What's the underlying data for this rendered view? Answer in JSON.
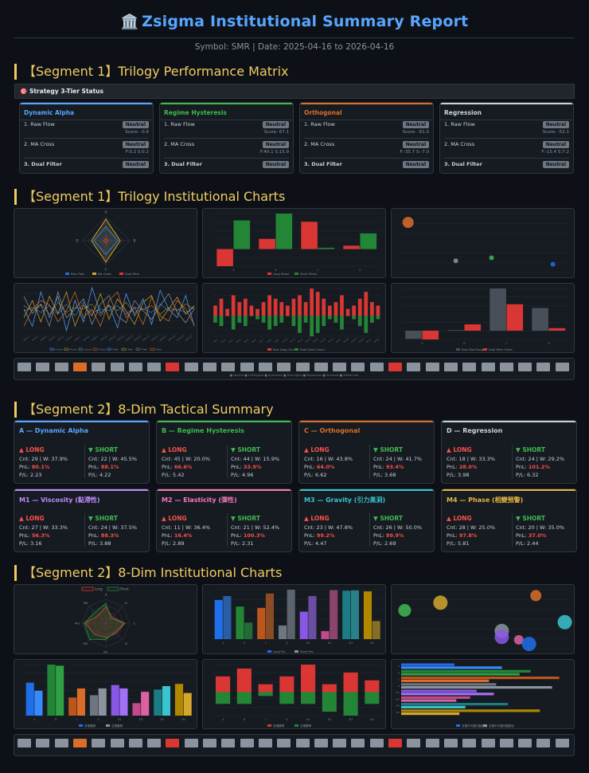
{
  "header": {
    "icon_name": "bank-icon",
    "icon_glyph": "🏛️",
    "title": "Zsigma Institutional Summary Report",
    "subtitle": "Symbol: SMR | Date: 2025-04-16 to 2026-04-16"
  },
  "seg1_matrix": {
    "title": "【Segment 1】Trilogy Performance Matrix",
    "status_bar": "🎯 Strategy 3-Tier Status",
    "cards": [
      {
        "name": "Dynamic Alpha",
        "color": "#58a6ff",
        "raw_flow": "1. Raw Flow",
        "raw_badge": "Neutral",
        "raw_sub": "Score: -0.6",
        "ma_cross": "2. MA Cross",
        "ma_badge": "Neutral",
        "ma_sub": "F:0.2 S:0.2",
        "dual": "3. Dual Filter",
        "dual_badge": "Neutral"
      },
      {
        "name": "Regime Hysteresis",
        "color": "#3fb950",
        "raw_flow": "1. Raw Flow",
        "raw_badge": "Neutral",
        "raw_sub": "Score: 67.1",
        "ma_cross": "2. MA Cross",
        "ma_badge": "Neutral",
        "ma_sub": "F:40.1 S:15.9",
        "dual": "3. Dual Filter",
        "dual_badge": "Neutral"
      },
      {
        "name": "Orthogonal",
        "color": "#db6d28",
        "raw_flow": "1. Raw Flow",
        "raw_badge": "Neutral",
        "raw_sub": "Score: -81.0",
        "ma_cross": "2. MA Cross",
        "ma_badge": "Neutral",
        "ma_sub": "F:-35.7 S:-7.0",
        "dual": "3. Dual Filter",
        "dual_badge": "Neutral"
      },
      {
        "name": "Regression",
        "color": "#c9d1d9",
        "raw_flow": "1. Raw Flow",
        "raw_badge": "Neutral",
        "raw_sub": "Score: -52.1",
        "ma_cross": "2. MA Cross",
        "ma_badge": "Neutral",
        "ma_sub": "F:-15.4 S:7.2",
        "dual": "3. Dual Filter",
        "dual_badge": "Neutral"
      }
    ]
  },
  "seg1_charts": {
    "title": "【Segment 1】Trilogy Institutional Charts",
    "radar_axes": [
      "A",
      "B",
      "C",
      "D"
    ],
    "radar_legend": [
      "Raw Flow",
      "MA Cross",
      "Dual Filter"
    ],
    "bar1_legend": [
      "Long Share",
      "Short Share"
    ],
    "bar2_legend": [
      "Raw Long Count",
      "Dual Short Count"
    ],
    "bar3_legend": [
      "Raw Flow Range",
      "Dual Filter Share"
    ],
    "line_legend": [
      "A Score",
      "B Score",
      "C Score",
      "D Score",
      "A Fast",
      "B Fast",
      "C Fast",
      "D Fast"
    ],
    "strip_legend": "■ Neutral  ■ Orthogonal  ■ Hysteresis  ■ Dual Alpha  ■ Regression  ■ Overload  ■ Whole-mkt"
  },
  "chart_data": [
    {
      "type": "radar",
      "title": "Trilogy Radar",
      "axes": [
        "A",
        "B",
        "C",
        "D"
      ],
      "series": [
        {
          "name": "Raw Flow",
          "values": [
            0.6,
            0.5,
            0.6,
            0.5
          ]
        },
        {
          "name": "MA Cross",
          "values": [
            0.9,
            0.6,
            0.9,
            0.6
          ]
        },
        {
          "name": "Dual Filter",
          "values": [
            0.1,
            0.1,
            0.1,
            0.1
          ]
        }
      ]
    },
    {
      "type": "bar",
      "title": "Long vs Short Share",
      "categories": [
        "A",
        "B",
        "C",
        "D"
      ],
      "series": [
        {
          "name": "Long Share",
          "values": [
            -2.5,
            1.5,
            4.0,
            0.5
          ]
        },
        {
          "name": "Short Share",
          "values": [
            4.2,
            5.2,
            0.2,
            2.3
          ]
        }
      ]
    },
    {
      "type": "scatter",
      "title": "Raw vs MA",
      "points": [
        {
          "x": 0.05,
          "y": 0.85,
          "r": 7,
          "color": "#db6d28"
        },
        {
          "x": 0.33,
          "y": 0.2,
          "r": 3,
          "color": "#8b949e"
        },
        {
          "x": 0.54,
          "y": 0.25,
          "r": 3,
          "color": "#3fb950"
        },
        {
          "x": 0.9,
          "y": 0.14,
          "r": 3,
          "color": "#1f6feb"
        }
      ]
    },
    {
      "type": "line",
      "title": "Score Timeline",
      "series": [
        {
          "name": "A Score"
        },
        {
          "name": "B Score"
        },
        {
          "name": "C Score"
        },
        {
          "name": "D Score"
        }
      ]
    },
    {
      "type": "bar",
      "title": "Raw Long vs Dual Short Count",
      "categories": [
        "1",
        "2",
        "3",
        "4",
        "5",
        "6",
        "7",
        "8",
        "9",
        "10",
        "11",
        "12",
        "13",
        "14",
        "15",
        "16",
        "17",
        "18",
        "19",
        "20",
        "21",
        "22",
        "23",
        "24",
        "25",
        "26",
        "27",
        "28"
      ],
      "series": [
        {
          "name": "Raw Long Count",
          "values": [
            3,
            5,
            2,
            6,
            4,
            5,
            3,
            2,
            4,
            6,
            5,
            4,
            3,
            5,
            6,
            4,
            8,
            7,
            5,
            3,
            4,
            6,
            2,
            3,
            5,
            7,
            4,
            3
          ]
        },
        {
          "name": "Dual Short Count",
          "values": [
            -2,
            -3,
            0,
            -4,
            -2,
            -3,
            0,
            -1,
            -2,
            -4,
            -3,
            -2,
            0,
            -3,
            -5,
            -2,
            -6,
            -5,
            -3,
            -1,
            -2,
            -4,
            0,
            -1,
            -3,
            -5,
            -2,
            -1
          ]
        }
      ]
    },
    {
      "type": "bar",
      "title": "Raw Flow Range vs Dual Filter Share",
      "categories": [
        "A",
        "B",
        "C",
        "D"
      ],
      "series": [
        {
          "name": "Raw Flow Range",
          "values": [
            -1.3,
            0.1,
            6.7,
            3.6
          ]
        },
        {
          "name": "Dual Filter Share",
          "values": [
            -1.4,
            1.0,
            4.2,
            0.4
          ]
        }
      ]
    },
    {
      "type": "radar",
      "title": "8-Dim Radar",
      "axes": [
        "A",
        "B",
        "C",
        "D",
        "M1",
        "M2",
        "M3",
        "M4"
      ],
      "series": [
        {
          "name": "Long",
          "values": [
            37.9,
            20.0,
            43.8,
            33.3,
            33.3,
            36.4,
            47.8,
            25.0
          ]
        },
        {
          "name": "Short",
          "values": [
            45.5,
            15.9,
            41.7,
            29.2,
            37.5,
            52.4,
            50.0,
            35.0
          ]
        }
      ]
    },
    {
      "type": "bar",
      "title": "Long vs Short PnL",
      "categories": [
        "A",
        "B",
        "C",
        "D",
        "M1",
        "M2",
        "M3",
        "M4"
      ],
      "series": [
        {
          "name": "Long PnL",
          "values": [
            80.1,
            66.6,
            64.0,
            28.0,
            56.3,
            16.4,
            99.2,
            97.8
          ]
        },
        {
          "name": "Short PnL",
          "values": [
            88.1,
            33.9,
            93.4,
            101.2,
            88.3,
            100.3,
            99.9,
            37.0
          ]
        }
      ]
    },
    {
      "type": "scatter",
      "title": "Win Rate vs PnL",
      "points": [
        {
          "x": 0.03,
          "y": 0.65,
          "r": 8,
          "color": "#3fb950"
        },
        {
          "x": 0.24,
          "y": 0.78,
          "r": 9,
          "color": "#d4a72c"
        },
        {
          "x": 0.6,
          "y": 0.3,
          "r": 9,
          "color": "#8b949e"
        },
        {
          "x": 0.6,
          "y": 0.2,
          "r": 9,
          "color": "#8957e5"
        },
        {
          "x": 0.7,
          "y": 0.15,
          "r": 6,
          "color": "#db61a2"
        },
        {
          "x": 0.76,
          "y": 0.08,
          "r": 9,
          "color": "#1f6feb"
        },
        {
          "x": 0.8,
          "y": 0.9,
          "r": 7,
          "color": "#db6d28"
        },
        {
          "x": 0.97,
          "y": 0.45,
          "r": 9,
          "color": "#39c5cf"
        }
      ]
    },
    {
      "type": "bar",
      "title": "Long vs Short Count",
      "categories": [
        "A",
        "B",
        "C",
        "D",
        "M1",
        "M2",
        "M3",
        "M4"
      ],
      "series": [
        {
          "name": "Long Count",
          "values": [
            29,
            45,
            16,
            18,
            27,
            11,
            23,
            28
          ]
        },
        {
          "name": "Short Count",
          "values": [
            22,
            44,
            24,
            24,
            24,
            21,
            26,
            20
          ]
        }
      ]
    },
    {
      "type": "bar",
      "title": "Long vs Short Win Share",
      "categories": [
        "A",
        "B",
        "C",
        "D",
        "M1",
        "M2",
        "M3",
        "M4"
      ],
      "series": [
        {
          "name": "Long Win",
          "values": [
            4,
            6,
            2,
            4,
            7,
            2,
            5,
            3
          ]
        },
        {
          "name": "Short Win",
          "values": [
            -3,
            -3,
            -1,
            -3,
            -3,
            -5,
            -6,
            -3
          ]
        }
      ]
    },
    {
      "type": "bar",
      "title": "Long vs Short Profit Ratio",
      "orientation": "horizontal",
      "categories": [
        "A",
        "B",
        "C",
        "D",
        "M1",
        "M2",
        "M3",
        "M4"
      ],
      "series": [
        {
          "name": "Long P/L",
          "values": [
            2.23,
            5.42,
            6.62,
            3.98,
            3.16,
            2.89,
            4.47,
            5.81
          ]
        },
        {
          "name": "Short P/L",
          "values": [
            4.22,
            4.96,
            3.68,
            6.32,
            3.88,
            2.31,
            2.69,
            2.44
          ]
        }
      ]
    }
  ],
  "seg2_summary": {
    "title": "【Segment 2】8-Dim Tactical Summary",
    "long_label": "▲ LONG",
    "short_label": "▼ SHORT",
    "cards": [
      {
        "name": "A — Dynamic Alpha",
        "color": "#58a6ff",
        "long_cnt": "Cnt: 29 | W: 37.9%",
        "long_pnl_label": "PnL:",
        "long_pnl": "80.1%",
        "long_pl": "P/L: 2.23",
        "short_cnt": "Cnt: 22 | W: 45.5%",
        "short_pnl_label": "PnL:",
        "short_pnl": "88.1%",
        "short_pl": "P/L: 4.22"
      },
      {
        "name": "B — Regime Hysteresis",
        "color": "#3fb950",
        "long_cnt": "Cnt: 45 | W: 20.0%",
        "long_pnl_label": "PnL:",
        "long_pnl": "66.6%",
        "long_pl": "P/L: 5.42",
        "short_cnt": "Cnt: 44 | W: 15.9%",
        "short_pnl_label": "PnL:",
        "short_pnl": "33.9%",
        "short_pl": "P/L: 4.96"
      },
      {
        "name": "C — Orthogonal",
        "color": "#db6d28",
        "long_cnt": "Cnt: 16 | W: 43.8%",
        "long_pnl_label": "PnL:",
        "long_pnl": "64.0%",
        "long_pl": "P/L: 6.62",
        "short_cnt": "Cnt: 24 | W: 41.7%",
        "short_pnl_label": "PnL:",
        "short_pnl": "93.4%",
        "short_pl": "P/L: 3.68"
      },
      {
        "name": "D — Regression",
        "color": "#c9d1d9",
        "long_cnt": "Cnt: 18 | W: 33.3%",
        "long_pnl_label": "PnL:",
        "long_pnl": "28.0%",
        "long_pl": "P/L: 3.98",
        "short_cnt": "Cnt: 24 | W: 29.2%",
        "short_pnl_label": "PnL:",
        "short_pnl": "101.2%",
        "short_pl": "P/L: 6.32"
      },
      {
        "name": "M1 — Viscosity (黏滯性)",
        "color": "#bc8cff",
        "long_cnt": "Cnt: 27 | W: 33.3%",
        "long_pnl_label": "PnL:",
        "long_pnl": "56.3%",
        "long_pl": "P/L: 3.16",
        "short_cnt": "Cnt: 24 | W: 37.5%",
        "short_pnl_label": "PnL:",
        "short_pnl": "88.3%",
        "short_pl": "P/L: 3.88"
      },
      {
        "name": "M2 — Elasticity (彈性)",
        "color": "#f778ba",
        "long_cnt": "Cnt: 11 | W: 36.4%",
        "long_pnl_label": "PnL:",
        "long_pnl": "16.4%",
        "long_pl": "P/L: 2.89",
        "short_cnt": "Cnt: 21 | W: 52.4%",
        "short_pnl_label": "PnL:",
        "short_pnl": "100.3%",
        "short_pl": "P/L: 2.31"
      },
      {
        "name": "M3 — Gravity (引力黑洞)",
        "color": "#39c5cf",
        "long_cnt": "Cnt: 23 | W: 47.8%",
        "long_pnl_label": "PnL:",
        "long_pnl": "99.2%",
        "long_pl": "P/L: 4.47",
        "short_cnt": "Cnt: 26 | W: 50.0%",
        "short_pnl_label": "PnL:",
        "short_pnl": "99.9%",
        "short_pl": "P/L: 2.69"
      },
      {
        "name": "M4 — Phase (相變預警)",
        "color": "#e3b341",
        "long_cnt": "Cnt: 28 | W: 25.0%",
        "long_pnl_label": "PnL:",
        "long_pnl": "97.8%",
        "long_pl": "P/L: 5.81",
        "short_cnt": "Cnt: 20 | W: 35.0%",
        "short_pnl_label": "PnL:",
        "short_pnl": "37.0%",
        "short_pl": "P/L: 2.44"
      }
    ]
  },
  "seg2_charts": {
    "title": "【Segment 2】8-Dim Institutional Charts",
    "radar_legend": [
      "Long",
      "Short"
    ],
    "pnl_legend": [
      "Long PnL",
      "Short PnL"
    ],
    "count_legend": [
      "多頭筆數",
      "空頭筆數"
    ],
    "win_legend": [
      "多頭勝率",
      "空頭勝率"
    ],
    "pl_legend": [
      "多頭平均獲利盈虧比",
      "空頭平均獲利盈虧比"
    ]
  },
  "strip_colors": [
    "#8b949e",
    "#8b949e",
    "#8b949e",
    "#db6d28",
    "#8b949e",
    "#8b949e",
    "#8b949e",
    "#8b949e",
    "#da3633",
    "#8b949e",
    "#8b949e",
    "#8b949e",
    "#8b949e",
    "#8b949e",
    "#8b949e",
    "#8b949e",
    "#8b949e",
    "#8b949e",
    "#8b949e",
    "#8b949e",
    "#da3633",
    "#8b949e",
    "#8b949e",
    "#8b949e",
    "#8b949e",
    "#8b949e",
    "#8b949e",
    "#8b949e",
    "#8b949e",
    "#8b949e"
  ]
}
